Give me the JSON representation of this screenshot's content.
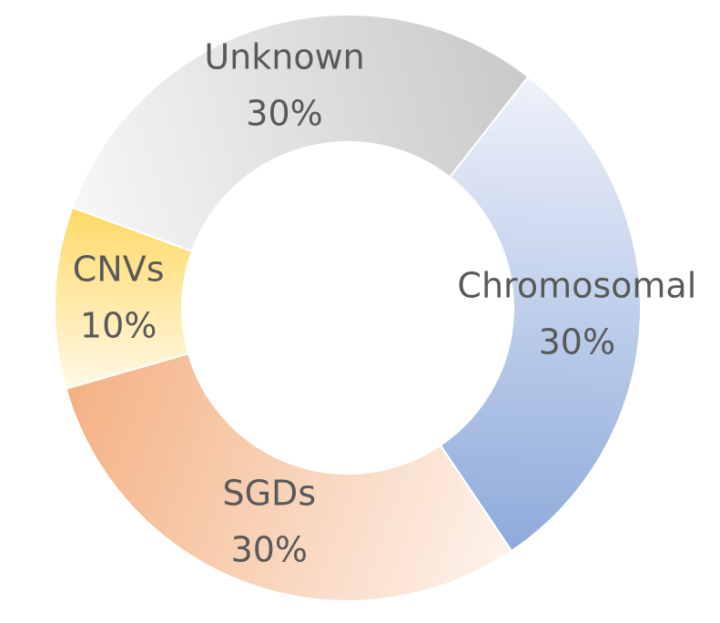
{
  "chart_data": {
    "type": "donut",
    "categories": [
      "Chromosomal",
      "SGDs",
      "CNVs",
      "Unknown"
    ],
    "values": [
      30,
      30,
      10,
      30
    ],
    "value_labels": [
      "30%",
      "30%",
      "10%",
      "30%"
    ],
    "colors": [
      "#8eaadb",
      "#f4b183",
      "#ffd966",
      "#c9c9c9"
    ]
  }
}
